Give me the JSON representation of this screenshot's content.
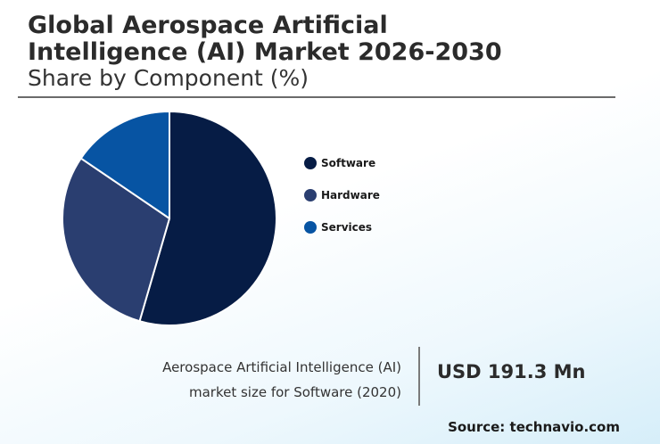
{
  "header": {
    "title_line1": "Global Aerospace Artificial",
    "title_line2": "Intelligence (AI) Market 2026-2030",
    "subtitle": "Share by Component (%)"
  },
  "chart_data": {
    "type": "pie",
    "title": "Global Aerospace Artificial Intelligence (AI) Market 2026-2030",
    "subtitle": "Share by Component (%)",
    "categories": [
      "Software",
      "Hardware",
      "Services"
    ],
    "values": [
      54.5,
      30.0,
      15.5
    ],
    "colors": [
      "#061c45",
      "#2a3e70",
      "#0754a3"
    ],
    "legend_position": "right"
  },
  "legend": {
    "items": [
      {
        "label": "Software",
        "color": "#061c45"
      },
      {
        "label": "Hardware",
        "color": "#2a3e70"
      },
      {
        "label": "Services",
        "color": "#0754a3"
      }
    ]
  },
  "footer": {
    "caption_line1": "Aerospace Artificial Intelligence (AI)",
    "caption_line2": "market size for Software (2020)",
    "value": "USD 191.3 Mn",
    "source": "Source: technavio.com"
  }
}
